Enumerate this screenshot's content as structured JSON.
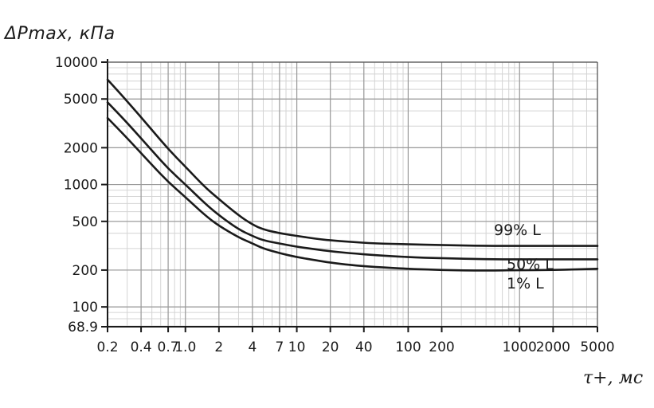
{
  "chart_data": {
    "type": "line",
    "title": "",
    "ylabel": "ΔPmax, кПа",
    "xlabel": "τ+, мс",
    "x_scale": "log",
    "y_scale": "log",
    "xlim": [
      0.2,
      5000
    ],
    "ylim": [
      68.9,
      10000
    ],
    "x_ticks": [
      0.2,
      0.4,
      0.7,
      1.0,
      2,
      4,
      7,
      10,
      20,
      40,
      100,
      200,
      1000,
      2000,
      5000
    ],
    "x_tick_labels": [
      "0.2",
      "0.4",
      "0.7",
      "1.0",
      "2",
      "4",
      "7",
      "10",
      "20",
      "40",
      "100",
      "200",
      "1000",
      "2000",
      "5000"
    ],
    "y_ticks": [
      68.9,
      100,
      200,
      500,
      1000,
      2000,
      5000,
      10000
    ],
    "y_tick_labels": [
      "68.9",
      "100",
      "200",
      "500",
      "1000",
      "2000",
      "5000",
      "10000"
    ],
    "grid": true,
    "series": [
      {
        "name": "99% L",
        "x": [
          0.2,
          0.3,
          0.5,
          0.7,
          1,
          1.5,
          2,
          3,
          4,
          5,
          7,
          10,
          15,
          20,
          30,
          50,
          100,
          200,
          500,
          1000,
          2000,
          5000
        ],
        "y": [
          7200,
          4800,
          2800,
          1950,
          1400,
          950,
          760,
          560,
          470,
          430,
          400,
          380,
          360,
          350,
          340,
          330,
          325,
          320,
          315,
          315,
          315,
          315
        ]
      },
      {
        "name": "50% L",
        "x": [
          0.2,
          0.3,
          0.5,
          0.7,
          1,
          1.5,
          2,
          3,
          4,
          5,
          7,
          10,
          15,
          20,
          30,
          50,
          100,
          200,
          500,
          1000,
          2000,
          5000
        ],
        "y": [
          4700,
          3200,
          1900,
          1350,
          1000,
          700,
          560,
          430,
          380,
          350,
          330,
          310,
          295,
          285,
          275,
          265,
          255,
          250,
          245,
          245,
          245,
          245
        ]
      },
      {
        "name": "1% L",
        "x": [
          0.2,
          0.3,
          0.5,
          0.7,
          1,
          1.5,
          2,
          3,
          4,
          5,
          7,
          10,
          15,
          20,
          30,
          50,
          100,
          200,
          500,
          1000,
          2000,
          5000
        ],
        "y": [
          3500,
          2400,
          1450,
          1050,
          790,
          560,
          460,
          370,
          330,
          300,
          275,
          255,
          240,
          230,
          220,
          212,
          205,
          200,
          198,
          200,
          200,
          205
        ]
      }
    ],
    "curve_labels": [
      "99% L",
      "50% L",
      "1% L"
    ],
    "colors": {
      "line": "#1a1a1a",
      "grid_major": "#9a9a9a",
      "grid_minor": "#d4d4d4"
    }
  }
}
